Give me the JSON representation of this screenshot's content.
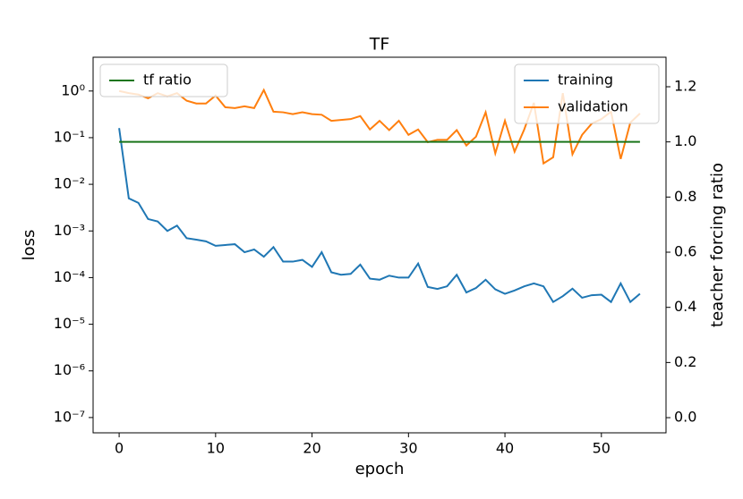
{
  "chart_data": {
    "type": "line",
    "title": "TF",
    "x_label": "epoch",
    "y_label": "loss",
    "y2_label": "teacher forcing ratio",
    "x": [
      0,
      1,
      2,
      3,
      4,
      5,
      6,
      7,
      8,
      9,
      10,
      11,
      12,
      13,
      14,
      15,
      16,
      17,
      18,
      19,
      20,
      21,
      22,
      23,
      24,
      25,
      26,
      27,
      28,
      29,
      30,
      31,
      32,
      33,
      34,
      35,
      36,
      37,
      38,
      39,
      40,
      41,
      42,
      43,
      44,
      45,
      46,
      47,
      48,
      49,
      50,
      51,
      52,
      53,
      54
    ],
    "series": [
      {
        "name": "training",
        "color": "#1f77b4",
        "values": [
          0.16,
          0.005,
          0.004,
          0.0018,
          0.0016,
          0.001,
          0.0013,
          0.0007,
          0.00065,
          0.0006,
          0.00048,
          0.0005,
          0.00052,
          0.00035,
          0.0004,
          0.00028,
          0.00045,
          0.00022,
          0.00022,
          0.00024,
          0.00017,
          0.00035,
          0.00013,
          0.000115,
          0.00012,
          0.00019,
          9.5e-05,
          9e-05,
          0.00011,
          0.0001,
          0.0001,
          0.0002,
          6.3e-05,
          5.7e-05,
          6.5e-05,
          0.000115,
          4.8e-05,
          6e-05,
          9e-05,
          5.6e-05,
          4.5e-05,
          5.3e-05,
          6.5e-05,
          7.5e-05,
          6.5e-05,
          3e-05,
          4e-05,
          5.8e-05,
          3.7e-05,
          4.2e-05,
          4.3e-05,
          3e-05,
          7.5e-05,
          3e-05,
          4.5e-05
        ]
      },
      {
        "name": "validation",
        "color": "#ff7f0e",
        "values": [
          1.0,
          0.9,
          0.84,
          0.7,
          0.9,
          0.77,
          0.9,
          0.62,
          0.54,
          0.54,
          0.8,
          0.45,
          0.43,
          0.47,
          0.43,
          1.05,
          0.36,
          0.35,
          0.32,
          0.35,
          0.32,
          0.31,
          0.23,
          0.24,
          0.25,
          0.29,
          0.15,
          0.23,
          0.145,
          0.23,
          0.115,
          0.15,
          0.08,
          0.09,
          0.09,
          0.145,
          0.068,
          0.105,
          0.35,
          0.046,
          0.23,
          0.05,
          0.15,
          0.56,
          0.028,
          0.038,
          0.9,
          0.044,
          0.115,
          0.2,
          0.25,
          0.36,
          0.035,
          0.21,
          0.33
        ]
      },
      {
        "name": "tf ratio",
        "color": "#1a751a",
        "axis": "y2",
        "values": [
          1,
          1,
          1,
          1,
          1,
          1,
          1,
          1,
          1,
          1,
          1,
          1,
          1,
          1,
          1,
          1,
          1,
          1,
          1,
          1,
          1,
          1,
          1,
          1,
          1,
          1,
          1,
          1,
          1,
          1,
          1,
          1,
          1,
          1,
          1,
          1,
          1,
          1,
          1,
          1,
          1,
          1,
          1,
          1,
          1,
          1,
          1,
          1,
          1,
          1,
          1,
          1,
          1,
          1,
          1
        ]
      }
    ],
    "xlim": [
      -2.7,
      56.7
    ],
    "xticks": [
      0,
      10,
      20,
      30,
      40,
      50
    ],
    "y_scale": "log",
    "ylim": [
      4.7e-08,
      5.3
    ],
    "yticks": [
      {
        "value": 1e-07,
        "label": "10⁻⁷"
      },
      {
        "value": 1e-06,
        "label": "10⁻⁶"
      },
      {
        "value": 1e-05,
        "label": "10⁻⁵"
      },
      {
        "value": 0.0001,
        "label": "10⁻⁴"
      },
      {
        "value": 0.001,
        "label": "10⁻³"
      },
      {
        "value": 0.01,
        "label": "10⁻²"
      },
      {
        "value": 0.1,
        "label": "10⁻¹"
      },
      {
        "value": 1,
        "label": "10⁰"
      }
    ],
    "y2lim": [
      -0.055,
      1.307
    ],
    "y2ticks": [
      {
        "value": 0,
        "label": "0.0"
      },
      0.2,
      0.4,
      0.6,
      0.8,
      {
        "value": 1,
        "label": "1.0"
      },
      1.2
    ],
    "legend": "upper right",
    "y2_legend": "upper left"
  }
}
